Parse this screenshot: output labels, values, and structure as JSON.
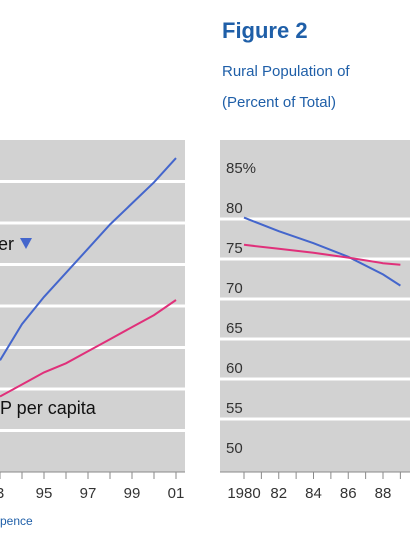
{
  "figure2": {
    "title": "Figure 2",
    "subtitle_line1": "Rural Population of",
    "subtitle_line2": "(Percent of Total)"
  },
  "footnote": "pence",
  "colors": {
    "panel": "#d2d2d2",
    "gridline": "#ffffff",
    "axis": "#8a8a8a",
    "blue_series": "#4466cc",
    "pink_series": "#e0307a",
    "title_blue": "#1f5fa8"
  },
  "chart_data": [
    {
      "type": "line",
      "x_tick_labels": [
        "3",
        "95",
        "97",
        "99",
        "01"
      ],
      "x": [
        1993,
        1994,
        1995,
        1996,
        1997,
        1998,
        1999,
        2000,
        2001
      ],
      "series": [
        {
          "name": "er",
          "color": "#4466cc",
          "marker": "down-triangle",
          "values": [
            3.7,
            4.9,
            5.8,
            6.6,
            7.4,
            8.2,
            8.9,
            9.6,
            10.4
          ]
        },
        {
          "name": "P per capita",
          "color": "#e0307a",
          "values": [
            2.5,
            2.9,
            3.3,
            3.6,
            4.0,
            4.4,
            4.8,
            5.2,
            5.7
          ]
        }
      ],
      "ylim": [
        0,
        11
      ],
      "grid": true
    },
    {
      "type": "line",
      "x_tick_labels": [
        "1980",
        "82",
        "84",
        "86",
        "88"
      ],
      "x": [
        1980,
        1982,
        1984,
        1986,
        1988,
        1989
      ],
      "y_tick_labels": [
        "85%",
        "80",
        "75",
        "70",
        "65",
        "60",
        "55",
        "50"
      ],
      "y_ticks": [
        85,
        80,
        75,
        70,
        65,
        60,
        55,
        50
      ],
      "ylim": [
        50,
        85
      ],
      "series": [
        {
          "color": "#4466cc",
          "values": [
            78.8,
            77.1,
            75.6,
            73.9,
            71.7,
            70.3
          ]
        },
        {
          "color": "#e0307a",
          "values": [
            75.4,
            74.9,
            74.4,
            73.8,
            73.1,
            72.9
          ]
        }
      ],
      "grid": true
    }
  ]
}
